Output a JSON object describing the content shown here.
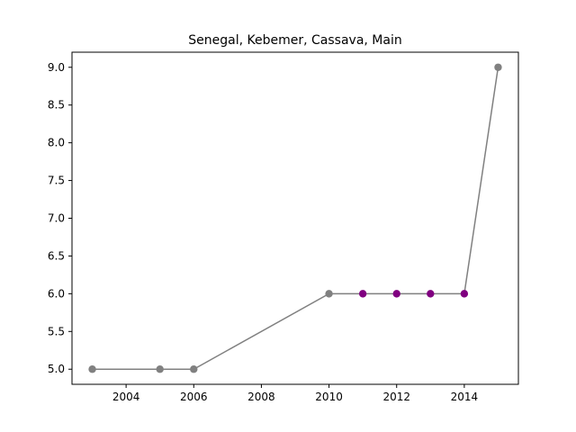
{
  "chart_data": {
    "type": "line",
    "title": "Senegal, Kebemer, Cassava, Main",
    "xlabel": "",
    "ylabel": "",
    "xlim": [
      2002.4,
      2015.6
    ],
    "ylim": [
      4.8,
      9.2
    ],
    "x_ticks": [
      2004,
      2006,
      2008,
      2010,
      2012,
      2014
    ],
    "y_ticks": [
      5.0,
      5.5,
      6.0,
      6.5,
      7.0,
      7.5,
      8.0,
      8.5,
      9.0
    ],
    "grid": false,
    "line_color": "#808080",
    "points": [
      {
        "x": 2003,
        "y": 5.0,
        "color": "#808080"
      },
      {
        "x": 2005,
        "y": 5.0,
        "color": "#808080"
      },
      {
        "x": 2006,
        "y": 5.0,
        "color": "#808080"
      },
      {
        "x": 2010,
        "y": 6.0,
        "color": "#808080"
      },
      {
        "x": 2011,
        "y": 6.0,
        "color": "#800080"
      },
      {
        "x": 2012,
        "y": 6.0,
        "color": "#800080"
      },
      {
        "x": 2013,
        "y": 6.0,
        "color": "#800080"
      },
      {
        "x": 2014,
        "y": 6.0,
        "color": "#800080"
      },
      {
        "x": 2015,
        "y": 9.0,
        "color": "#808080"
      }
    ]
  }
}
